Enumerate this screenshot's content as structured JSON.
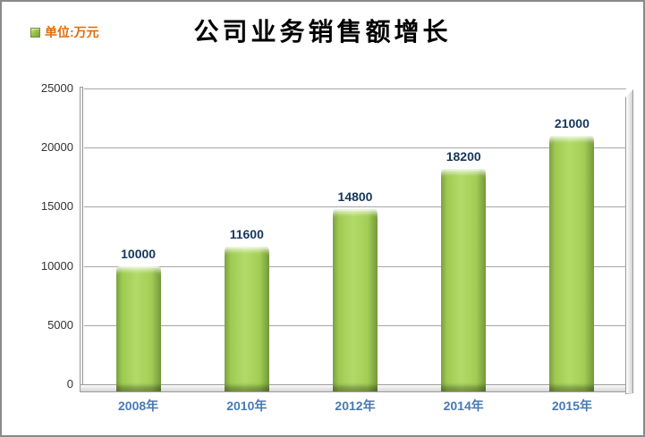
{
  "title": "公司业务销售额增长",
  "legend": {
    "label": "单位:万元",
    "swatch_color": "#9cc34b",
    "text_color": "#e26b0a"
  },
  "chart_data": {
    "type": "bar",
    "title": "公司业务销售额增长",
    "unit_label": "单位:万元",
    "categories": [
      "2008年",
      "2010年",
      "2012年",
      "2014年",
      "2015年"
    ],
    "values": [
      10000,
      11600,
      14800,
      18200,
      21000
    ],
    "xlabel": "",
    "ylabel": "",
    "ylim": [
      0,
      25000
    ],
    "yticks": [
      0,
      5000,
      10000,
      15000,
      20000,
      25000
    ],
    "grid": true,
    "legend_position": "top-left",
    "bar_color": "#9cc34b",
    "value_label_color": "#17365d",
    "category_label_color": "#4779b5",
    "gridline_color": "#a6a6a6"
  }
}
